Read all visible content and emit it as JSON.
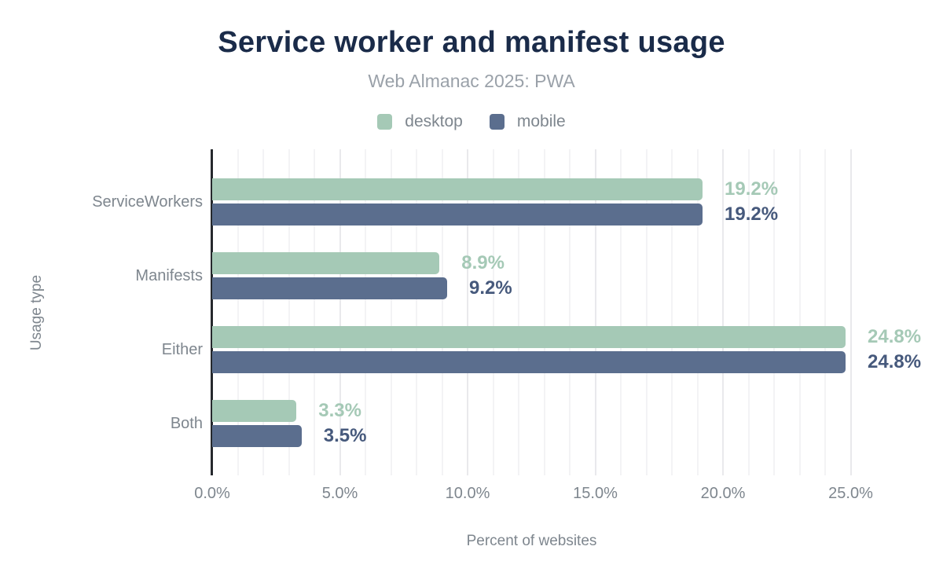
{
  "chart_data": {
    "type": "bar",
    "orientation": "horizontal",
    "title": "Service worker and manifest usage",
    "subtitle": "Web Almanac 2025: PWA",
    "xlabel": "Percent of websites",
    "ylabel": "Usage type",
    "categories": [
      "ServiceWorkers",
      "Manifests",
      "Either",
      "Both"
    ],
    "series": [
      {
        "name": "desktop",
        "color": "#a5c9b6",
        "label_color": "#a5c9b6",
        "values": [
          19.2,
          8.9,
          24.8,
          3.3
        ],
        "labels": [
          "19.2%",
          "8.9%",
          "24.8%",
          "3.3%"
        ]
      },
      {
        "name": "mobile",
        "color": "#5b6e8e",
        "label_color": "#46597c",
        "values": [
          19.2,
          9.2,
          24.8,
          3.5
        ],
        "labels": [
          "19.2%",
          "9.2%",
          "24.8%",
          "3.5%"
        ]
      }
    ],
    "value_suffix": "%",
    "xlim": [
      0,
      25
    ],
    "xticks": [
      0,
      5,
      10,
      15,
      20,
      25
    ],
    "xtick_labels": [
      "0.0%",
      "5.0%",
      "10.0%",
      "15.0%",
      "20.0%",
      "25.0%"
    ],
    "grid": "vertical gridlines every 1%, emphasized every 5%",
    "legend_position": "top"
  },
  "style": {
    "background": "#ffffff",
    "title_color": "#1a2b49",
    "subtitle_color": "#9aa1a9",
    "axis_text_color": "#7e868e",
    "axis_line_color": "#26292d",
    "grid_minor_color": "#f3f3f5",
    "grid_major_color": "#e9e9ec"
  }
}
